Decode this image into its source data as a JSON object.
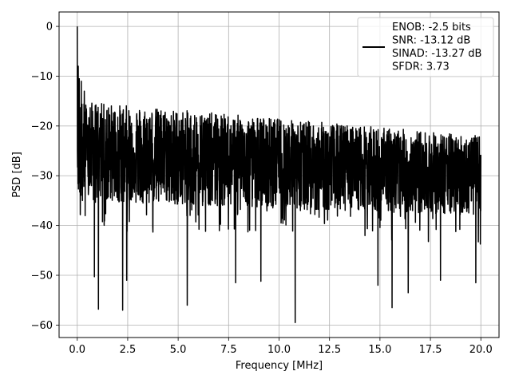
{
  "chart_data": {
    "type": "line",
    "title": "",
    "xlabel": "Frequency [MHz]",
    "ylabel": "PSD [dB]",
    "xlim": [
      -0.9,
      20.9
    ],
    "ylim": [
      -62.5,
      2.9
    ],
    "xticks": [
      0.0,
      2.5,
      5.0,
      7.5,
      10.0,
      12.5,
      15.0,
      17.5,
      20.0
    ],
    "xtick_labels": [
      "0.0",
      "2.5",
      "5.0",
      "7.5",
      "10.0",
      "12.5",
      "15.0",
      "17.5",
      "20.0"
    ],
    "yticks": [
      0,
      -10,
      -20,
      -30,
      -40,
      -50,
      -60
    ],
    "ytick_labels": [
      "0",
      "−10",
      "−20",
      "−30",
      "−40",
      "−50",
      "−60"
    ],
    "grid": true,
    "legend_position": "top-right",
    "series_color": "#000000",
    "series": [
      {
        "name": "ENOB: -2.5 bits\nSNR: -13.12 dB\nSINAD: -13.27 dB\nSFDR: 3.73",
        "x_range": [
          0.0,
          20.0
        ],
        "envelope": {
          "description": "noise floor",
          "upper_start": -15,
          "upper_end": -22,
          "median_start": -25,
          "median_end": -30,
          "lower_start": -35,
          "lower_end": -38
        },
        "peaks": [
          {
            "x": 0.0,
            "y": 0.0
          },
          {
            "x": 0.05,
            "y": -8.0
          },
          {
            "x": 0.1,
            "y": -10.5
          },
          {
            "x": 0.2,
            "y": -11.0
          },
          {
            "x": 0.35,
            "y": -13.0
          }
        ],
        "dips": [
          {
            "x": 0.85,
            "y": -50.3
          },
          {
            "x": 1.05,
            "y": -56.8
          },
          {
            "x": 2.25,
            "y": -57.0
          },
          {
            "x": 2.45,
            "y": -51.0
          },
          {
            "x": 5.45,
            "y": -56.0
          },
          {
            "x": 10.8,
            "y": -59.5
          },
          {
            "x": 15.6,
            "y": -56.5
          },
          {
            "x": 16.4,
            "y": -53.5
          },
          {
            "x": 7.85,
            "y": -51.5
          },
          {
            "x": 9.1,
            "y": -51.2
          },
          {
            "x": 14.9,
            "y": -52.0
          },
          {
            "x": 18.0,
            "y": -51.0
          },
          {
            "x": 19.75,
            "y": -51.5
          }
        ]
      }
    ]
  }
}
